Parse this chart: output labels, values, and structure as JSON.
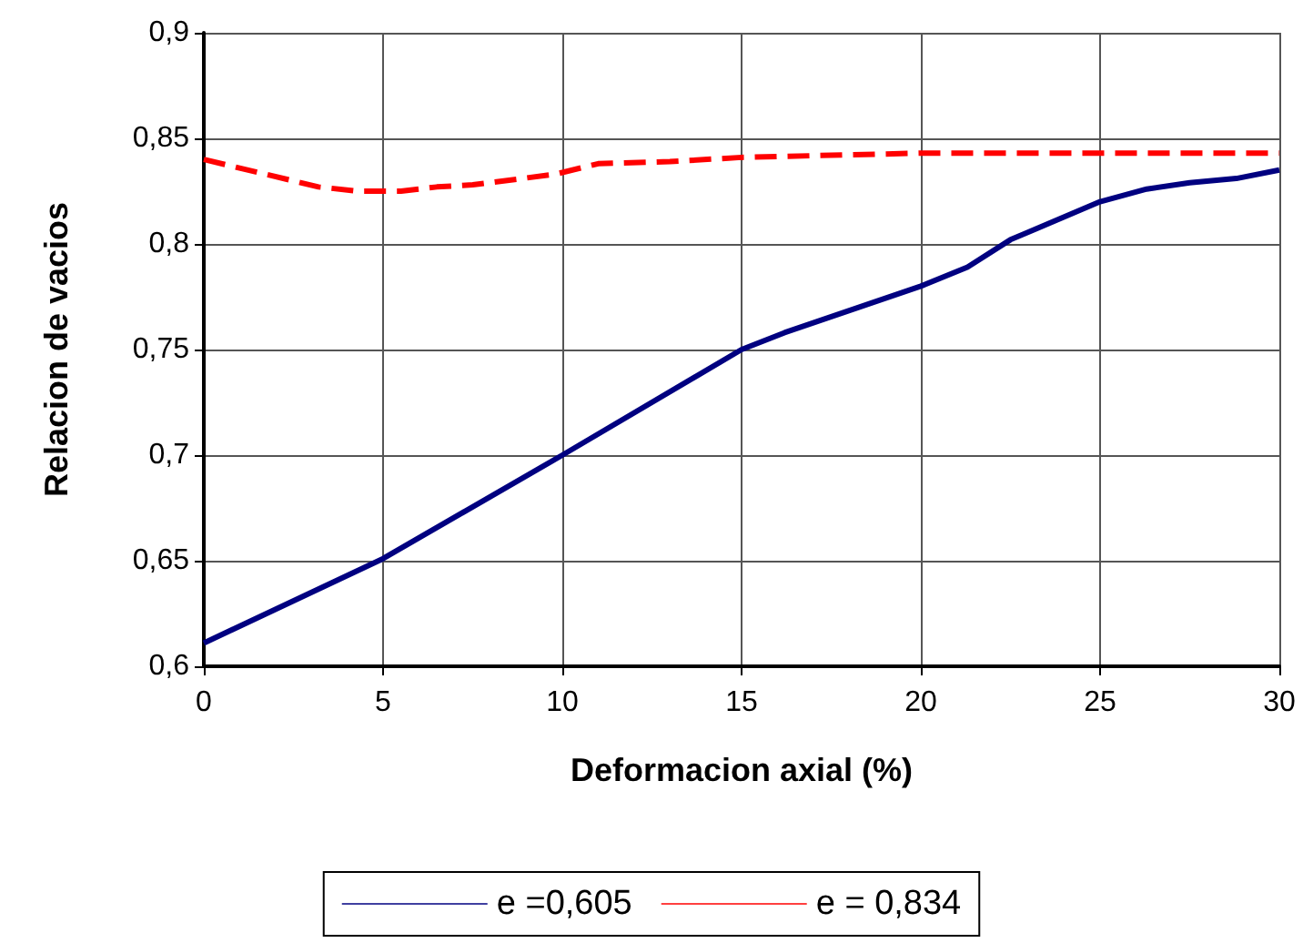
{
  "chart_data": {
    "type": "line",
    "xlabel": "Deformacion axial (%)",
    "ylabel": "Relacion de vacios",
    "xlim": [
      0,
      30
    ],
    "xticks": [
      0,
      5,
      10,
      15,
      20,
      25,
      30
    ],
    "ylim": [
      0.6,
      0.9
    ],
    "yticks": [
      {
        "value": 0.6,
        "label": "0,6"
      },
      {
        "value": 0.65,
        "label": "0,65"
      },
      {
        "value": 0.7,
        "label": "0,7"
      },
      {
        "value": 0.75,
        "label": "0,75"
      },
      {
        "value": 0.8,
        "label": "0,8"
      },
      {
        "value": 0.85,
        "label": "0,85"
      },
      {
        "value": 0.9,
        "label": "0,9"
      }
    ],
    "grid": true,
    "legend": "bottom",
    "marker": "none",
    "series": [
      {
        "name": "e =0,605",
        "color": "#000080",
        "line_style": "solid",
        "x": [
          0,
          5,
          10,
          15,
          16.2,
          20,
          21.3,
          22.5,
          25,
          26.3,
          27.5,
          28.8,
          30
        ],
        "values": [
          0.611,
          0.651,
          0.7,
          0.75,
          0.758,
          0.78,
          0.789,
          0.802,
          0.82,
          0.826,
          0.829,
          0.831,
          0.835
        ]
      },
      {
        "name": "e = 0,834",
        "color": "#ff0000",
        "line_style": "dashed",
        "x": [
          0,
          3.2,
          4.3,
          5.5,
          6.5,
          7.5,
          9.8,
          11,
          13,
          15,
          20,
          30
        ],
        "values": [
          0.84,
          0.827,
          0.825,
          0.825,
          0.827,
          0.828,
          0.833,
          0.838,
          0.839,
          0.841,
          0.843,
          0.843
        ]
      }
    ]
  }
}
